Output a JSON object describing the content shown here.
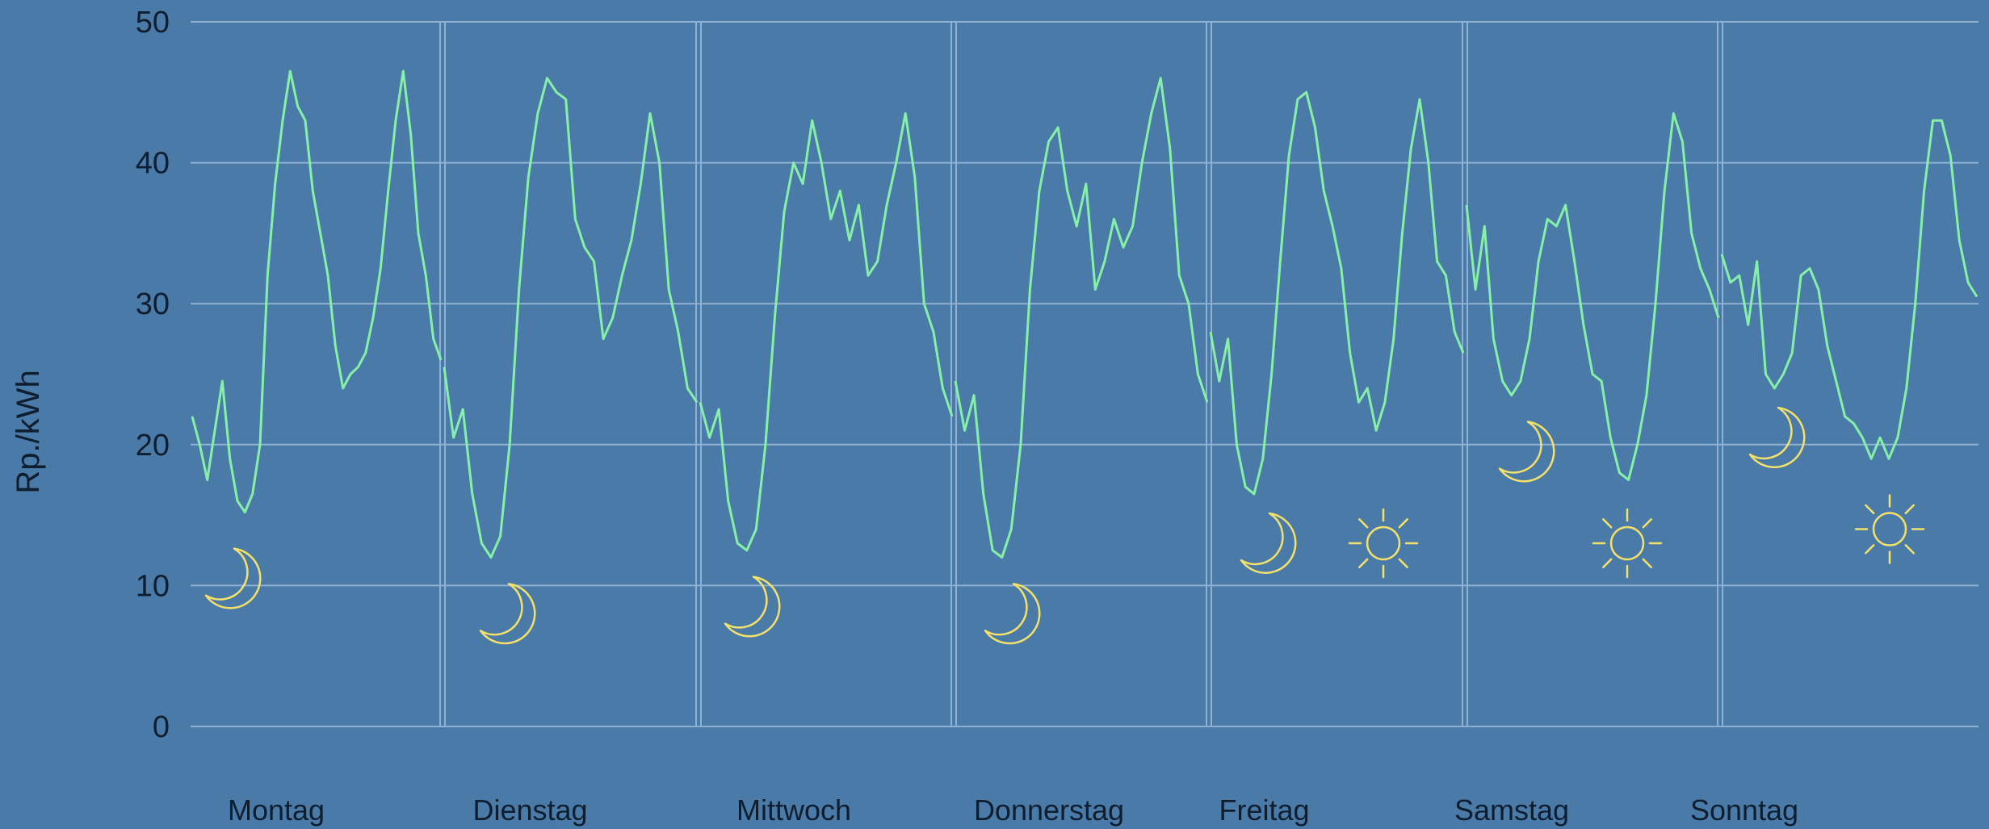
{
  "chart_data": {
    "type": "line",
    "xlabel": "",
    "ylabel": "Rp./kWh",
    "ylim": [
      0,
      50
    ],
    "yticks": [
      0,
      10,
      20,
      30,
      40,
      50
    ],
    "grid": true,
    "categories": [
      "Montag",
      "Dienstag",
      "Mittwoch",
      "Donnerstag",
      "Freitag",
      "Samstag",
      "Sonntag"
    ],
    "series": [
      {
        "color": "#86f0a8",
        "values": [
          [
            22,
            20,
            17.5,
            21,
            24.5,
            19,
            16,
            15.2,
            16.5,
            20,
            32,
            38.5,
            43,
            46.5,
            44,
            43,
            38,
            35,
            32,
            27,
            24,
            25,
            25.5,
            26.5,
            29,
            32.5,
            38,
            43,
            46.5,
            42,
            35,
            32,
            27.5,
            26
          ],
          [
            25.5,
            20.5,
            22.5,
            16.5,
            13,
            12,
            13.5,
            20,
            31,
            39,
            43.5,
            46,
            45,
            44.5,
            36,
            34,
            33,
            27.5,
            29,
            32,
            34.5,
            38.5,
            43.5,
            40,
            31,
            28,
            24,
            23
          ],
          [
            23,
            20.5,
            22.5,
            16,
            13,
            12.5,
            14,
            20,
            29,
            36.5,
            40,
            38.5,
            43,
            40,
            36,
            38,
            34.5,
            37,
            32,
            33,
            37,
            40,
            43.5,
            39,
            30,
            28,
            24,
            22
          ],
          [
            24.5,
            21,
            23.5,
            16.5,
            12.5,
            12,
            14,
            20,
            31,
            38,
            41.5,
            42.5,
            38,
            35.5,
            38.5,
            31,
            33,
            36,
            34,
            35.5,
            40,
            43.5,
            46,
            41,
            32,
            30,
            25,
            23
          ],
          [
            28,
            24.5,
            27.5,
            20,
            17,
            16.5,
            19,
            25,
            33,
            40.5,
            44.5,
            45,
            42.5,
            38,
            35.5,
            32.5,
            26.5,
            23,
            24,
            21,
            23,
            27.5,
            35,
            41,
            44.5,
            40,
            33,
            32,
            28,
            26.5
          ],
          [
            37,
            31,
            35.5,
            27.5,
            24.5,
            23.5,
            24.5,
            27.5,
            33,
            36,
            35.5,
            37,
            33,
            28.5,
            25,
            24.5,
            20.5,
            18,
            17.5,
            20,
            23.5,
            30,
            38,
            43.5,
            41.5,
            35,
            32.5,
            31,
            29
          ],
          [
            33.5,
            31.5,
            32,
            28.5,
            33,
            25,
            24,
            25,
            26.5,
            32,
            32.5,
            31,
            27,
            24.5,
            22,
            21.5,
            20.5,
            19,
            20.5,
            19,
            20.5,
            24,
            30,
            38,
            43,
            43,
            40.5,
            34.5,
            31.5,
            30.5
          ]
        ]
      }
    ],
    "annotations": [
      {
        "category": "Montag",
        "symbol": "moon-icon",
        "value": 10.5
      },
      {
        "category": "Dienstag",
        "symbol": "moon-icon",
        "value": 8
      },
      {
        "category": "Mittwoch",
        "symbol": "moon-icon",
        "value": 8.5
      },
      {
        "category": "Donnerstag",
        "symbol": "moon-icon",
        "value": 8
      },
      {
        "category": "Freitag",
        "symbol": "moon-icon",
        "value": 13
      },
      {
        "category": "Freitag",
        "symbol": "sun-icon",
        "value": 13
      },
      {
        "category": "Samstag",
        "symbol": "moon-icon",
        "value": 19.5
      },
      {
        "category": "Samstag",
        "symbol": "sun-icon",
        "value": 13
      },
      {
        "category": "Sonntag",
        "symbol": "moon-icon",
        "value": 20.5
      },
      {
        "category": "Sonntag",
        "symbol": "sun-icon",
        "value": 14
      }
    ],
    "colors": {
      "background": "#4a7aa8",
      "line": "#86f0a8",
      "grid": "#8fb1d3",
      "icons": "#f4e16a",
      "text": "#0f1e2e"
    }
  }
}
